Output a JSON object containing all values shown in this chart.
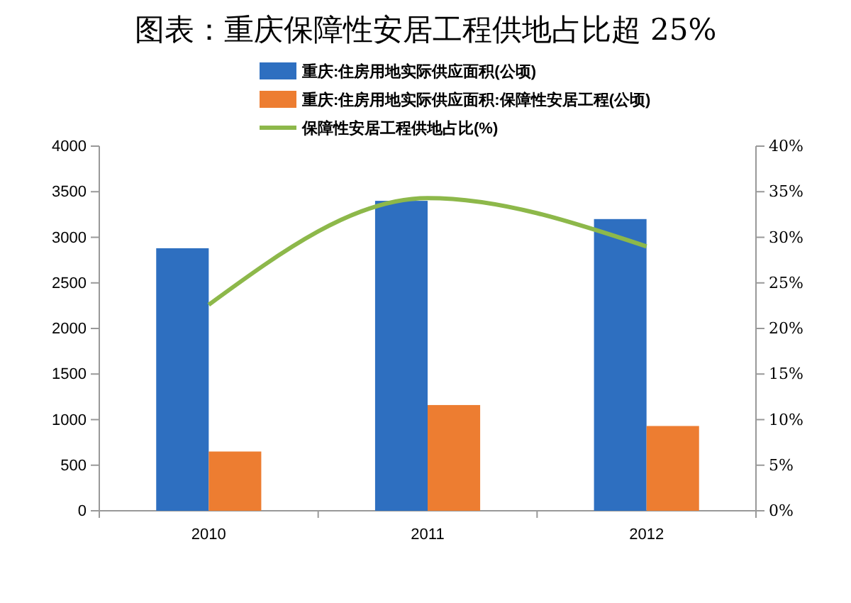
{
  "chart_data": {
    "type": "bar",
    "title": "图表：重庆保障性安居工程供地占比超 25%",
    "categories": [
      "2010",
      "2011",
      "2012"
    ],
    "series": [
      {
        "name": "重庆:住房用地实际供应面积(公顷)",
        "color": "#2e6fc0",
        "values": [
          2880,
          3400,
          3200
        ]
      },
      {
        "name": "重庆:住房用地实际供应面积:保障性安居工程(公顷)",
        "color": "#ed7d31",
        "values": [
          650,
          1160,
          930
        ]
      },
      {
        "name": "保障性安居工程供地占比(%)",
        "type": "line",
        "axis": "y2",
        "color": "#8db84a",
        "values": [
          22.6,
          34.3,
          29.0
        ]
      }
    ],
    "ylim": [
      0,
      4000
    ],
    "yticks": [
      0,
      500,
      1000,
      1500,
      2000,
      2500,
      3000,
      3500,
      4000
    ],
    "y2lim": [
      0,
      40
    ],
    "y2ticks": [
      {
        "value": 0,
        "label": "0%"
      },
      {
        "value": 5,
        "label": "5%"
      },
      {
        "value": 10,
        "label": "10%"
      },
      {
        "value": 15,
        "label": "15%"
      },
      {
        "value": 20,
        "label": "20%"
      },
      {
        "value": 25,
        "label": "25%"
      },
      {
        "value": 30,
        "label": "30%"
      },
      {
        "value": 35,
        "label": "35%"
      },
      {
        "value": 40,
        "label": "40%"
      }
    ],
    "legend": "top",
    "grid": false
  }
}
